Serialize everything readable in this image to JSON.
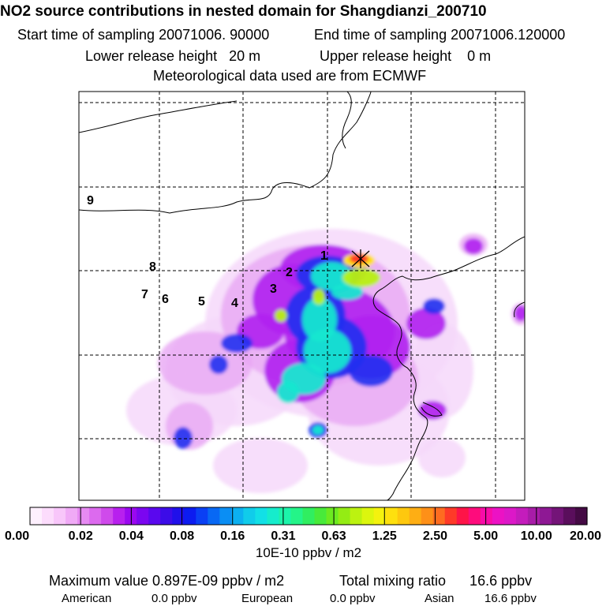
{
  "header": {
    "title": "NO2 source contributions in nested domain for Shangdianzi_200710",
    "start_label": "Start time of sampling 20071006. 90000",
    "end_label": "End time of sampling 20071006.120000",
    "lower_label": "Lower release height   20 m",
    "upper_label": "Upper release height    0 m",
    "met_label": "Meteorological data used are from ECMWF"
  },
  "chart_data": {
    "type": "heatmap",
    "title": "NO2 source contributions in nested domain for Shangdianzi_200710",
    "colorbar": {
      "unit_label": "10E-10 ppbv / m2",
      "tick_labels": [
        "0.00",
        "0.02",
        "0.04",
        "0.08",
        "0.16",
        "0.31",
        "0.63",
        "1.25",
        "2.50",
        "5.00",
        "10.00",
        "20.00"
      ],
      "colors": [
        "#fef0fe",
        "#fcdcfc",
        "#f8c6fa",
        "#f0aaf6",
        "#e68af2",
        "#dc6aee",
        "#cf4aeb",
        "#b820ee",
        "#9a08f0",
        "#7b06f0",
        "#5a08ee",
        "#3c0ce8",
        "#2010ea",
        "#0c1cf0",
        "#0a40f4",
        "#0868f4",
        "#0a8ef4",
        "#0cb0f0",
        "#10ccea",
        "#12e0e6",
        "#16eccc",
        "#1cf4aa",
        "#24f488",
        "#30ee60",
        "#48ea3a",
        "#6cea20",
        "#94ec14",
        "#bcf210",
        "#dcf60e",
        "#f4f20e",
        "#fee00e",
        "#fec80e",
        "#feae14",
        "#fe9018",
        "#fe6c20",
        "#fe3a28",
        "#fe1448",
        "#fe0c7c",
        "#f80ca8",
        "#ec12c4",
        "#dc18c8",
        "#c41cbc",
        "#a81ca8",
        "#8e1894",
        "#741478",
        "#5a0e5c",
        "#440a44"
      ]
    },
    "region_labels": [
      "1",
      "2",
      "3",
      "4",
      "5",
      "6",
      "7",
      "8",
      "9"
    ],
    "receptor_marker": "receptor-cross",
    "grid": true,
    "maximum_label": "Maximum value  0.897E-09 ppbv / m2",
    "total_label": "Total mixing ratio      16.6 ppbv",
    "american_label": "American",
    "american_value": "0.0 ppbv",
    "european_label": "European",
    "european_value": "0.0 ppbv",
    "asian_label": "Asian",
    "asian_value": "16.6 ppbv"
  }
}
